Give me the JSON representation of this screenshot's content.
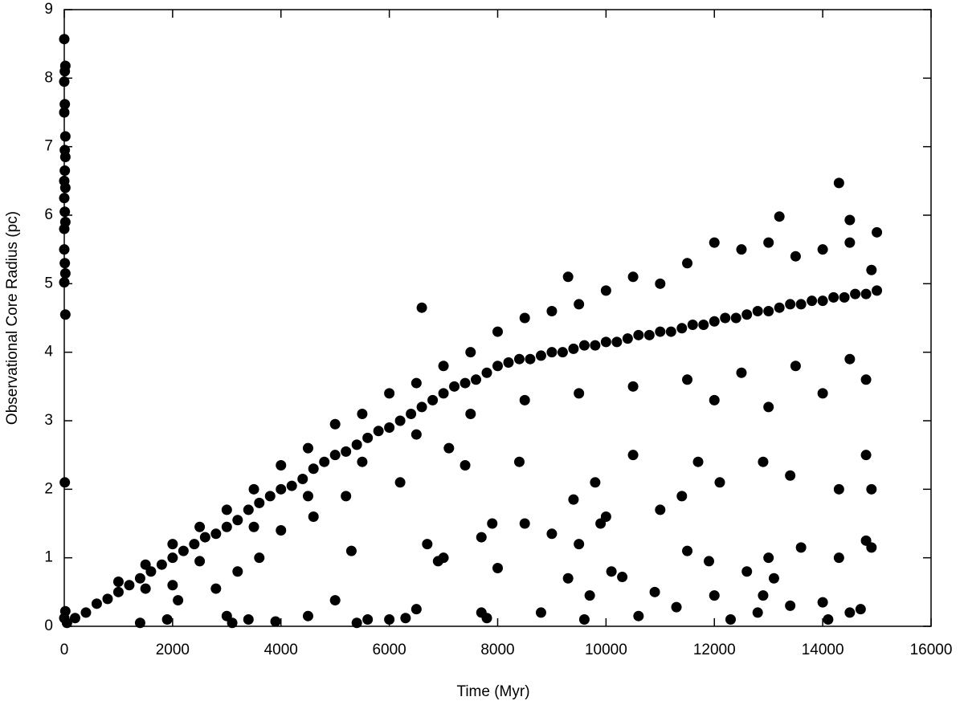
{
  "chart_data": {
    "type": "scatter",
    "x_label": "Time (Myr)",
    "y_label": "Observational Core Radius (pc)",
    "color": "#000000",
    "xlim": [
      0,
      16000
    ],
    "xticks": [
      0,
      2000,
      4000,
      6000,
      8000,
      10000,
      12000,
      14000,
      16000
    ],
    "ylim": [
      0,
      9
    ],
    "yticks": [
      0,
      1,
      2,
      3,
      4,
      5,
      6,
      7,
      8,
      9
    ],
    "x": [
      0,
      20,
      10,
      0,
      10,
      0,
      20,
      10,
      20,
      10,
      0,
      20,
      0,
      10,
      20,
      0,
      0,
      10,
      20,
      0,
      20,
      10,
      20,
      0,
      50,
      200,
      400,
      600,
      800,
      1000,
      1200,
      1400,
      1600,
      1800,
      2000,
      2200,
      2400,
      2600,
      2800,
      3000,
      3200,
      3400,
      3600,
      3800,
      4000,
      4200,
      4400,
      4600,
      4800,
      5000,
      5200,
      5400,
      5600,
      5800,
      6000,
      6200,
      6400,
      6600,
      6800,
      7000,
      7200,
      7400,
      7600,
      7800,
      8000,
      8200,
      8400,
      8600,
      8800,
      9000,
      9200,
      9400,
      9600,
      9800,
      10000,
      10200,
      10400,
      10600,
      10800,
      11000,
      11200,
      11400,
      11600,
      11800,
      12000,
      12200,
      12400,
      12600,
      12800,
      13000,
      13200,
      13400,
      13600,
      13800,
      14000,
      14200,
      14400,
      14600,
      14800,
      15000,
      1000,
      1500,
      2000,
      2500,
      3000,
      3500,
      4000,
      4500,
      5000,
      5500,
      6000,
      6500,
      7000,
      7500,
      8000,
      8500,
      9000,
      9500,
      10000,
      10500,
      11000,
      11500,
      12000,
      12500,
      13000,
      13500,
      14000,
      14500,
      15000,
      1500,
      2500,
      3500,
      4500,
      5500,
      6500,
      7500,
      8500,
      9500,
      10500,
      11500,
      12500,
      13500,
      14500,
      12000,
      13000,
      14000,
      14800,
      6600,
      14300,
      13200,
      14500,
      9300,
      14900,
      1400,
      1900,
      2000,
      2100,
      2800,
      3000,
      3100,
      3200,
      3400,
      3900,
      4500,
      5000,
      5300,
      5400,
      5600,
      6000,
      6300,
      6500,
      6700,
      6900,
      7000,
      7700,
      7800,
      8000,
      7700,
      7900,
      8500,
      8800,
      9000,
      9300,
      9400,
      9500,
      9600,
      9700,
      9900,
      10100,
      10300,
      10600,
      10900,
      11300,
      11500,
      11900,
      12000,
      12300,
      12600,
      12800,
      12900,
      13000,
      13100,
      13400,
      13600,
      14000,
      14100,
      14300,
      14500,
      14700,
      14800,
      14900,
      10000,
      11000,
      11400,
      12100,
      13400,
      14300,
      14800,
      14900,
      8400,
      9800,
      10500,
      11700,
      12900,
      7100,
      7400,
      6200,
      5200,
      4600,
      4000,
      3600
    ],
    "values": [
      8.57,
      8.18,
      8.1,
      7.95,
      7.62,
      7.5,
      7.15,
      6.95,
      6.85,
      6.65,
      6.5,
      6.4,
      6.25,
      6.05,
      5.9,
      5.8,
      5.5,
      5.3,
      5.15,
      5.02,
      4.55,
      2.1,
      0.22,
      0.12,
      0.05,
      0.12,
      0.2,
      0.33,
      0.4,
      0.5,
      0.6,
      0.7,
      0.8,
      0.9,
      1.0,
      1.1,
      1.2,
      1.3,
      1.35,
      1.45,
      1.55,
      1.7,
      1.8,
      1.9,
      2.0,
      2.05,
      2.15,
      2.3,
      2.4,
      2.5,
      2.55,
      2.65,
      2.75,
      2.85,
      2.9,
      3.0,
      3.1,
      3.2,
      3.3,
      3.4,
      3.5,
      3.55,
      3.6,
      3.7,
      3.8,
      3.85,
      3.9,
      3.9,
      3.95,
      4.0,
      4.0,
      4.05,
      4.1,
      4.1,
      4.15,
      4.15,
      4.2,
      4.25,
      4.25,
      4.3,
      4.3,
      4.35,
      4.4,
      4.4,
      4.45,
      4.5,
      4.5,
      4.55,
      4.6,
      4.6,
      4.65,
      4.7,
      4.7,
      4.75,
      4.75,
      4.8,
      4.8,
      4.85,
      4.85,
      4.9,
      0.65,
      0.9,
      1.2,
      1.45,
      1.7,
      2.0,
      2.35,
      2.6,
      2.95,
      3.1,
      3.4,
      3.55,
      3.8,
      4.0,
      4.3,
      4.5,
      4.6,
      4.7,
      4.9,
      5.1,
      5.0,
      5.3,
      5.6,
      5.5,
      5.6,
      5.4,
      5.5,
      5.6,
      5.75,
      0.55,
      0.95,
      1.45,
      1.9,
      2.4,
      2.8,
      3.1,
      3.3,
      3.4,
      3.5,
      3.6,
      3.7,
      3.8,
      3.9,
      3.3,
      3.2,
      3.4,
      3.6,
      4.65,
      6.47,
      5.98,
      5.93,
      5.1,
      5.2,
      0.05,
      0.1,
      0.6,
      0.38,
      0.55,
      0.15,
      0.05,
      0.8,
      0.1,
      0.07,
      0.15,
      0.38,
      1.1,
      0.05,
      0.1,
      0.1,
      0.12,
      0.25,
      1.2,
      0.95,
      1.0,
      0.2,
      0.12,
      0.85,
      1.3,
      1.5,
      1.5,
      0.2,
      1.35,
      0.7,
      1.85,
      1.2,
      0.1,
      0.45,
      1.5,
      0.8,
      0.72,
      0.15,
      0.5,
      0.28,
      1.1,
      0.95,
      0.45,
      0.1,
      0.8,
      0.2,
      0.45,
      1.0,
      0.7,
      0.3,
      1.15,
      0.35,
      0.1,
      1.0,
      0.2,
      0.25,
      1.25,
      1.15,
      1.6,
      1.7,
      1.9,
      2.1,
      2.2,
      2.0,
      2.5,
      2.0,
      2.4,
      2.1,
      2.5,
      2.4,
      2.4,
      2.6,
      2.35,
      2.1,
      1.9,
      1.6,
      1.4,
      1.0
    ]
  }
}
